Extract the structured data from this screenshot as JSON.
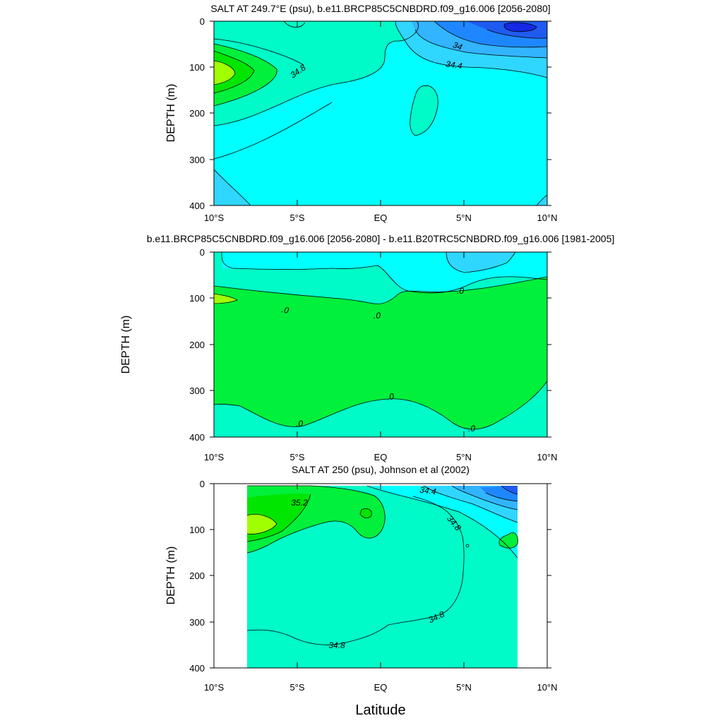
{
  "figure": {
    "xlabel": "Latitude"
  },
  "chart_data": [
    {
      "type": "contour",
      "title": "SALT AT 249.7°E (psu), b.e11.BRCP85C5CNBDRD.f09_g16.006 [2056-2080]",
      "ylabel": "DEPTH (m)",
      "xlim": [
        -10,
        10
      ],
      "ylim": [
        400,
        0
      ],
      "xticks": [
        "10°S",
        "5°S",
        "EQ",
        "5°N",
        "10°N"
      ],
      "yticks": [
        "0",
        "100",
        "200",
        "300",
        "400"
      ],
      "contour_labels": [
        {
          "text": "34.8",
          "x": -5.0,
          "y": 105
        },
        {
          "text": "34",
          "x": 4.6,
          "y": 52
        },
        {
          "text": "34.4",
          "x": 4.6,
          "y": 92
        }
      ],
      "colors": {
        "cyan": "#00ffff",
        "aquamarine": "#00fac8",
        "green": "#00f03c",
        "bright_green": "#00e600",
        "lime": "#a0ff00",
        "light_blue": "#2fd6ff",
        "blue1": "#32b4ff",
        "blue2": "#1e87ff",
        "blue3": "#1f5bf0",
        "deep_blue": "#1428e6"
      }
    },
    {
      "type": "contour",
      "title": "b.e11.BRCP85C5CNBDRD.f09_g16.006 [2056-2080] - b.e11.B20TRC5CNBDRD.f09_g16.006 [1981-2005]",
      "ylabel": "DEPTH (m)",
      "xlim": [
        -10,
        10
      ],
      "ylim": [
        400,
        0
      ],
      "xticks": [
        "10°S",
        "5°S",
        "EQ",
        "5°N",
        "10°N"
      ],
      "yticks": [
        "0",
        "100",
        "200",
        "300",
        "400"
      ],
      "contour_labels": [
        {
          "text": ".0",
          "x": 4.8,
          "y": 88
        },
        {
          "text": ".0",
          "x": -5.6,
          "y": 128
        },
        {
          "text": ".0",
          "x": -0.2,
          "y": 140
        },
        {
          "text": ".0",
          "x": 0.6,
          "y": 310
        },
        {
          "text": ".0",
          "x": -4.9,
          "y": 372
        },
        {
          "text": ".0",
          "x": 5.5,
          "y": 382
        }
      ]
    },
    {
      "type": "contour",
      "title": "SALT AT 250 (psu), Johnson et al (2002)",
      "ylabel": "DEPTH (m)",
      "xlim": [
        -10,
        10
      ],
      "ylim": [
        400,
        0
      ],
      "data_extent_x": [
        -8.0,
        8.2
      ],
      "data_extent_y": [
        8,
        400
      ],
      "xticks": [
        "10°S",
        "5°S",
        "EQ",
        "5°N",
        "10°N"
      ],
      "yticks": [
        "0",
        "100",
        "200",
        "300",
        "400"
      ],
      "contour_labels": [
        {
          "text": "35.2",
          "x": -5.2,
          "y": 42
        },
        {
          "text": "34.4",
          "x": 2.8,
          "y": 16
        },
        {
          "text": "34.8",
          "x": 4.3,
          "y": 90
        },
        {
          "text": "34.8",
          "x": 3.3,
          "y": 290
        },
        {
          "text": "34.8",
          "x": -2.6,
          "y": 352
        }
      ]
    }
  ]
}
